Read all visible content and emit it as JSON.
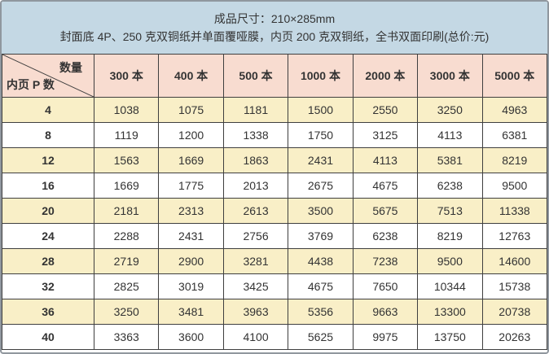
{
  "header": {
    "line1": "成品尺寸：210×285mm",
    "line2": "封面底 4P、250 克双铜纸并单面覆哑膜，内页 200 克双铜纸，全书双面印刷(总价:元)"
  },
  "corner": {
    "quantity_label": "数量",
    "pages_label": "内页 P 数"
  },
  "chart_data": {
    "type": "table",
    "title": "成品尺寸：210×285mm",
    "subtitle": "封面底 4P、250 克双铜纸并单面覆哑膜，内页 200 克双铜纸，全书双面印刷(总价:元)",
    "column_axis_label": "数量",
    "row_axis_label": "内页 P 数",
    "columns": [
      "300 本",
      "400 本",
      "500 本",
      "1000 本",
      "2000 本",
      "3000 本",
      "5000 本"
    ],
    "rows": [
      "4",
      "8",
      "12",
      "16",
      "20",
      "24",
      "28",
      "32",
      "36",
      "40"
    ],
    "values": [
      [
        1038,
        1075,
        1181,
        1500,
        2550,
        3250,
        4963
      ],
      [
        1119,
        1200,
        1338,
        1750,
        3125,
        4113,
        6381
      ],
      [
        1563,
        1669,
        1863,
        2431,
        4113,
        5381,
        8219
      ],
      [
        1669,
        1775,
        2013,
        2675,
        4675,
        6238,
        9500
      ],
      [
        2181,
        2313,
        2613,
        3500,
        5675,
        7513,
        11338
      ],
      [
        2288,
        2431,
        2756,
        3769,
        6238,
        8219,
        12763
      ],
      [
        2719,
        2900,
        3281,
        4438,
        7238,
        9500,
        14600
      ],
      [
        2825,
        3019,
        3425,
        4675,
        7650,
        10344,
        15738
      ],
      [
        3250,
        3481,
        3963,
        5356,
        9663,
        13300,
        20738
      ],
      [
        3363,
        3600,
        4100,
        5625,
        9975,
        13750,
        20263
      ]
    ],
    "units": "元",
    "layout": {
      "striped_rows": true,
      "grid": true
    }
  },
  "colors": {
    "header_bg": "#c4d8e4",
    "thead_bg": "#f8dcd0",
    "row_alt_bg": "#f9efc7",
    "row_bg": "#ffffff",
    "border": "#3f3f3f",
    "outer_border": "#90979e",
    "text": "#333333"
  }
}
